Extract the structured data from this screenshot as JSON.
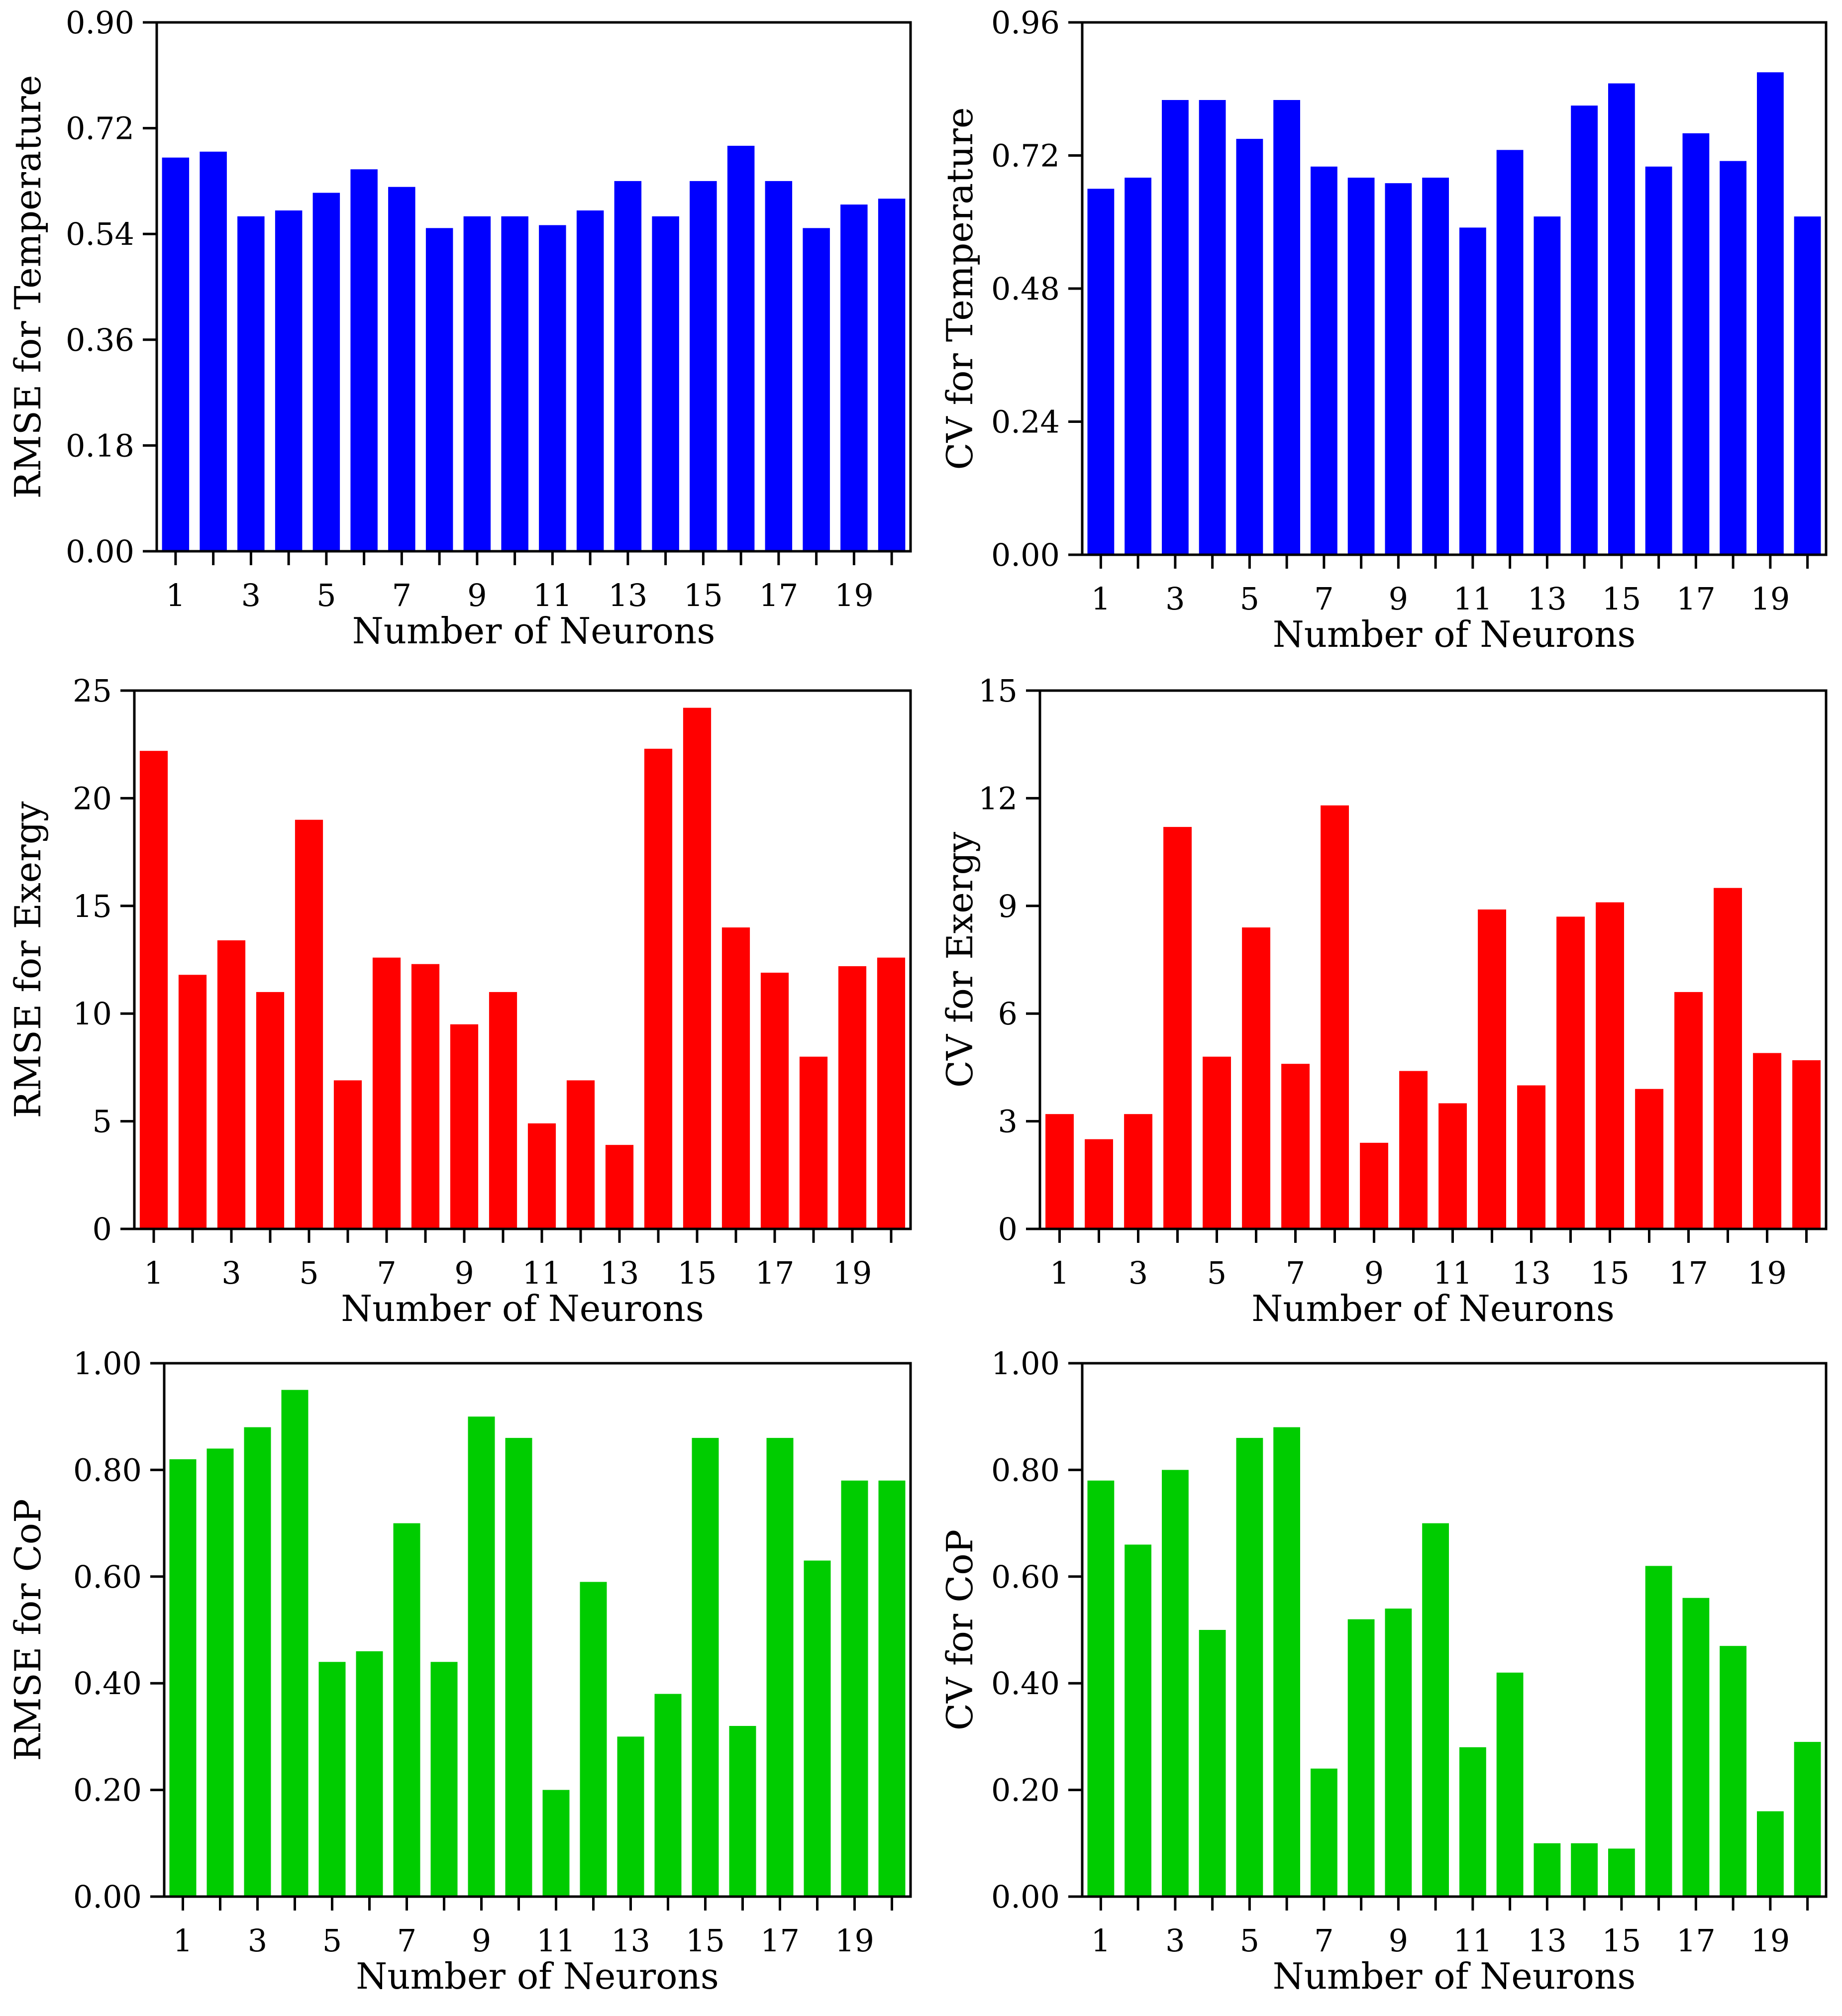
{
  "colors": {
    "temperature": "#0000ff",
    "exergy": "#ff0000",
    "cop": "#00cc00",
    "axis": "#000000"
  },
  "chart_data": [
    {
      "id": "rmse-temperature",
      "type": "bar",
      "color_key": "temperature",
      "xlabel": "Number of Neurons",
      "ylabel": "RMSE for Temperature",
      "categories": [
        1,
        2,
        3,
        4,
        5,
        6,
        7,
        8,
        9,
        10,
        11,
        12,
        13,
        14,
        15,
        16,
        17,
        18,
        19,
        20
      ],
      "xtick_labels": [
        "1",
        "3",
        "5",
        "7",
        "9",
        "11",
        "13",
        "15",
        "17",
        "19"
      ],
      "values": [
        0.67,
        0.68,
        0.57,
        0.58,
        0.61,
        0.65,
        0.62,
        0.55,
        0.57,
        0.57,
        0.555,
        0.58,
        0.63,
        0.57,
        0.63,
        0.69,
        0.63,
        0.55,
        0.59,
        0.6
      ],
      "ylim": [
        0,
        0.9
      ],
      "ytick_labels": [
        "0.00",
        "0.18",
        "0.36",
        "0.54",
        "0.72",
        "0.90"
      ]
    },
    {
      "id": "cv-temperature",
      "type": "bar",
      "color_key": "temperature",
      "xlabel": "Number of Neurons",
      "ylabel": "CV for Temperature",
      "categories": [
        1,
        2,
        3,
        4,
        5,
        6,
        7,
        8,
        9,
        10,
        11,
        12,
        13,
        14,
        15,
        16,
        17,
        18,
        19,
        20
      ],
      "xtick_labels": [
        "1",
        "3",
        "5",
        "7",
        "9",
        "11",
        "13",
        "15",
        "17",
        "19"
      ],
      "values": [
        0.66,
        0.68,
        0.82,
        0.82,
        0.75,
        0.82,
        0.7,
        0.68,
        0.67,
        0.68,
        0.59,
        0.73,
        0.61,
        0.81,
        0.85,
        0.7,
        0.76,
        0.71,
        0.87,
        0.61
      ],
      "ylim": [
        0,
        0.96
      ],
      "ytick_labels": [
        "0.00",
        "0.24",
        "0.48",
        "0.72",
        "0.96"
      ]
    },
    {
      "id": "rmse-exergy",
      "type": "bar",
      "color_key": "exergy",
      "xlabel": "Number of Neurons",
      "ylabel": "RMSE for Exergy",
      "categories": [
        1,
        2,
        3,
        4,
        5,
        6,
        7,
        8,
        9,
        10,
        11,
        12,
        13,
        14,
        15,
        16,
        17,
        18,
        19,
        20
      ],
      "xtick_labels": [
        "1",
        "3",
        "5",
        "7",
        "9",
        "11",
        "13",
        "15",
        "17",
        "19"
      ],
      "values": [
        22.2,
        11.8,
        13.4,
        11.0,
        19.0,
        6.9,
        12.6,
        12.3,
        9.5,
        11.0,
        4.9,
        6.9,
        3.9,
        22.3,
        24.2,
        14.0,
        11.9,
        8.0,
        12.2,
        12.6
      ],
      "ylim": [
        0,
        25
      ],
      "ytick_labels": [
        "0",
        "5",
        "10",
        "15",
        "20",
        "25"
      ]
    },
    {
      "id": "cv-exergy",
      "type": "bar",
      "color_key": "exergy",
      "xlabel": "Number of Neurons",
      "ylabel": "CV for Exergy",
      "categories": [
        1,
        2,
        3,
        4,
        5,
        6,
        7,
        8,
        9,
        10,
        11,
        12,
        13,
        14,
        15,
        16,
        17,
        18,
        19,
        20
      ],
      "xtick_labels": [
        "1",
        "3",
        "5",
        "7",
        "9",
        "11",
        "13",
        "15",
        "17",
        "19"
      ],
      "values": [
        3.2,
        2.5,
        3.2,
        11.2,
        4.8,
        8.4,
        4.6,
        11.8,
        2.4,
        4.4,
        3.5,
        8.9,
        4.0,
        8.7,
        9.1,
        3.9,
        6.6,
        9.5,
        4.9,
        4.7
      ],
      "ylim": [
        0,
        15
      ],
      "ytick_labels": [
        "0",
        "3",
        "6",
        "9",
        "12",
        "15"
      ]
    },
    {
      "id": "rmse-cop",
      "type": "bar",
      "color_key": "cop",
      "xlabel": "Number of Neurons",
      "ylabel": "RMSE for CoP",
      "categories": [
        1,
        2,
        3,
        4,
        5,
        6,
        7,
        8,
        9,
        10,
        11,
        12,
        13,
        14,
        15,
        16,
        17,
        18,
        19,
        20
      ],
      "xtick_labels": [
        "1",
        "3",
        "5",
        "7",
        "9",
        "11",
        "13",
        "15",
        "17",
        "19"
      ],
      "values": [
        0.82,
        0.84,
        0.88,
        0.95,
        0.44,
        0.46,
        0.7,
        0.44,
        0.9,
        0.86,
        0.2,
        0.59,
        0.3,
        0.38,
        0.86,
        0.32,
        0.86,
        0.63,
        0.78,
        0.78
      ],
      "ylim": [
        0,
        1.0
      ],
      "ytick_labels": [
        "0.00",
        "0.20",
        "0.40",
        "0.60",
        "0.80",
        "1.00"
      ]
    },
    {
      "id": "cv-cop",
      "type": "bar",
      "color_key": "cop",
      "xlabel": "Number of Neurons",
      "ylabel": "CV for CoP",
      "categories": [
        1,
        2,
        3,
        4,
        5,
        6,
        7,
        8,
        9,
        10,
        11,
        12,
        13,
        14,
        15,
        16,
        17,
        18,
        19,
        20
      ],
      "xtick_labels": [
        "1",
        "3",
        "5",
        "7",
        "9",
        "11",
        "13",
        "15",
        "17",
        "19"
      ],
      "values": [
        0.78,
        0.66,
        0.8,
        0.5,
        0.86,
        0.88,
        0.24,
        0.52,
        0.54,
        0.7,
        0.28,
        0.42,
        0.1,
        0.1,
        0.09,
        0.62,
        0.56,
        0.47,
        0.16,
        0.29
      ],
      "ylim": [
        0,
        1.0
      ],
      "ytick_labels": [
        "0.00",
        "0.20",
        "0.40",
        "0.60",
        "0.80",
        "1.00"
      ]
    }
  ]
}
